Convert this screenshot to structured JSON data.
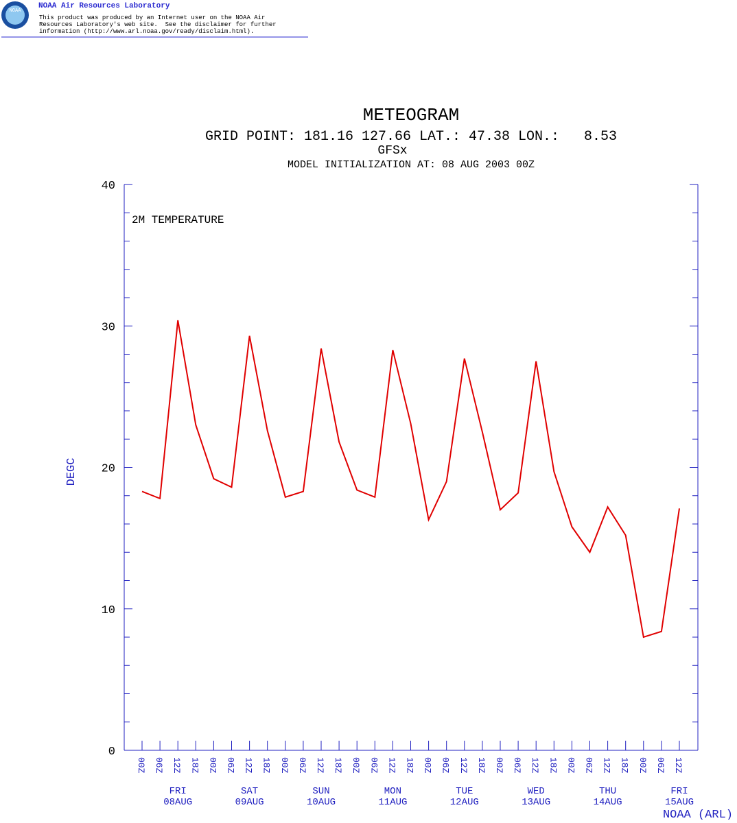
{
  "header": {
    "org": "NOAA Air Resources Laboratory",
    "disclaimer": [
      "This product was produced by an Internet user on the NOAA Air",
      "Resources Laboratory's web site.  See the disclaimer for further",
      "information (http://www.arl.noaa.gov/ready/disclaim.html)."
    ],
    "logo": "NOAA"
  },
  "chart_data": {
    "type": "line",
    "title": "METEOGRAM",
    "subtitle": "GRID POINT: 181.16 127.66 LAT.: 47.38 LON.:   8.53",
    "model": "GFSx",
    "init": "MODEL INITIALIZATION AT: 08 AUG 2003 00Z",
    "annotation": "2M TEMPERATURE",
    "y_label": "DEGC",
    "credit": "NOAA (ARL)",
    "categories": [
      "00Z",
      "06Z",
      "12Z",
      "18Z",
      "00Z",
      "06Z",
      "12Z",
      "18Z",
      "00Z",
      "06Z",
      "12Z",
      "18Z",
      "00Z",
      "06Z",
      "12Z",
      "18Z",
      "00Z",
      "06Z",
      "12Z",
      "18Z",
      "00Z",
      "06Z",
      "12Z",
      "18Z",
      "00Z",
      "06Z",
      "12Z",
      "18Z",
      "00Z",
      "06Z",
      "12Z"
    ],
    "day_labels": [
      {
        "day": "FRI",
        "date": "08AUG"
      },
      {
        "day": "SAT",
        "date": "09AUG"
      },
      {
        "day": "SUN",
        "date": "10AUG"
      },
      {
        "day": "MON",
        "date": "11AUG"
      },
      {
        "day": "TUE",
        "date": "12AUG"
      },
      {
        "day": "WED",
        "date": "13AUG"
      },
      {
        "day": "THU",
        "date": "14AUG"
      },
      {
        "day": "FRI",
        "date": "15AUG"
      }
    ],
    "series": [
      {
        "name": "2M TEMPERATURE",
        "color": "#e00000",
        "values": [
          18.3,
          17.8,
          30.4,
          23.0,
          19.2,
          18.6,
          29.3,
          22.6,
          17.9,
          18.3,
          28.4,
          21.8,
          18.4,
          17.9,
          28.3,
          23.1,
          16.3,
          19.0,
          27.7,
          22.5,
          17.0,
          18.2,
          27.5,
          19.7,
          15.8,
          14.0,
          17.2,
          15.2,
          8.0,
          8.4,
          17.1
        ]
      }
    ],
    "ylim": [
      0,
      40
    ],
    "yticks": [
      0,
      10,
      20,
      30,
      40
    ],
    "yminorticks": [
      2,
      4,
      6,
      8,
      12,
      14,
      16,
      18,
      22,
      24,
      26,
      28,
      32,
      34,
      36,
      38
    ],
    "axis_color": "#2020c0"
  }
}
